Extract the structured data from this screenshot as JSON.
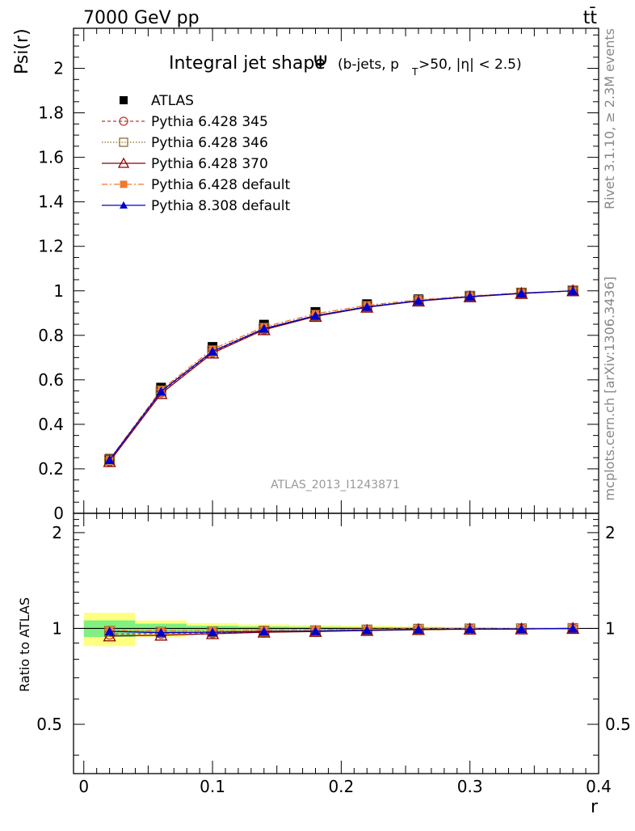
{
  "header": {
    "left": "7000 GeV pp",
    "right": "tt̄"
  },
  "side": {
    "top": "Rivet 3.1.10, ≥ 2.3M events",
    "bottom": "mcplots.cern.ch [arXiv:1306.3436]"
  },
  "chart_data": {
    "type": "line",
    "title_main": "Integral jet shape",
    "title_symbol": "Ψ",
    "title_cuts": "(b-jets, p",
    "title_sub": "T",
    "title_cuts2": ">50, |η| < 2.5)",
    "watermark": "ATLAS_2013_I1243871",
    "ylabel": "Psi(r)",
    "xlabel": "r",
    "ratio_ylabel": "Ratio to ATLAS",
    "xlim": [
      -0.008,
      0.4
    ],
    "ylim": [
      0,
      2.18
    ],
    "ratio_ylim": [
      0.35,
      2.3
    ],
    "x_ticks": [
      0,
      0.1,
      0.2,
      0.3,
      0.4
    ],
    "x_tick_labels": [
      "0",
      "0.1",
      "0.2",
      "0.3",
      "0.4"
    ],
    "y_ticks": [
      0,
      0.2,
      0.4,
      0.6,
      0.8,
      1,
      1.2,
      1.4,
      1.6,
      1.8,
      2
    ],
    "y_tick_labels": [
      "0",
      "0.2",
      "0.4",
      "0.6",
      "0.8",
      "1",
      "1.2",
      "1.4",
      "1.6",
      "1.8",
      "2"
    ],
    "ratio_ticks": [
      0.5,
      1,
      2
    ],
    "ratio_tick_labels": [
      "0.5",
      "1",
      "2"
    ],
    "x": [
      0.02,
      0.06,
      0.1,
      0.14,
      0.18,
      0.22,
      0.26,
      0.3,
      0.34,
      0.38
    ],
    "bin_edges": [
      0,
      0.04,
      0.08,
      0.12,
      0.16,
      0.2,
      0.24,
      0.28,
      0.32,
      0.36,
      0.4
    ],
    "data": {
      "name": "ATLAS",
      "values": [
        0.245,
        0.565,
        0.748,
        0.848,
        0.905,
        0.94,
        0.962,
        0.978,
        0.992,
        1.0
      ],
      "band_inner": [
        0.06,
        0.035,
        0.02,
        0.015,
        0.012,
        0.01,
        0.008,
        0.005,
        0.003,
        0.0
      ],
      "band_outer": [
        0.12,
        0.06,
        0.04,
        0.03,
        0.025,
        0.02,
        0.015,
        0.01,
        0.005,
        0.0
      ]
    },
    "series": [
      {
        "name": "Pythia 6.428 345",
        "color": "#c0392b",
        "marker": "circle-open",
        "dash": "4,3",
        "values": [
          0.235,
          0.545,
          0.725,
          0.828,
          0.887,
          0.928,
          0.955,
          0.974,
          0.989,
          1.0
        ]
      },
      {
        "name": "Pythia 6.428 346",
        "color": "#8b6d2f",
        "marker": "square-open",
        "dash": "1.5,2",
        "values": [
          0.24,
          0.55,
          0.73,
          0.832,
          0.89,
          0.93,
          0.957,
          0.975,
          0.99,
          1.0
        ]
      },
      {
        "name": "Pythia 6.428 370",
        "color": "#8b0000",
        "marker": "triangle-open",
        "dash": "",
        "values": [
          0.232,
          0.538,
          0.72,
          0.825,
          0.885,
          0.926,
          0.954,
          0.973,
          0.988,
          1.0
        ]
      },
      {
        "name": "Pythia 6.428 default",
        "color": "#f07830",
        "marker": "square-filled",
        "dash": "7,3,2,3",
        "values": [
          0.242,
          0.555,
          0.738,
          0.838,
          0.897,
          0.935,
          0.96,
          0.977,
          0.991,
          1.0
        ]
      },
      {
        "name": "Pythia 8.308 default",
        "color": "#0000cc",
        "marker": "triangle-filled",
        "dash": "",
        "values": [
          0.24,
          0.548,
          0.728,
          0.83,
          0.888,
          0.928,
          0.955,
          0.974,
          0.989,
          1.0
        ]
      }
    ]
  }
}
